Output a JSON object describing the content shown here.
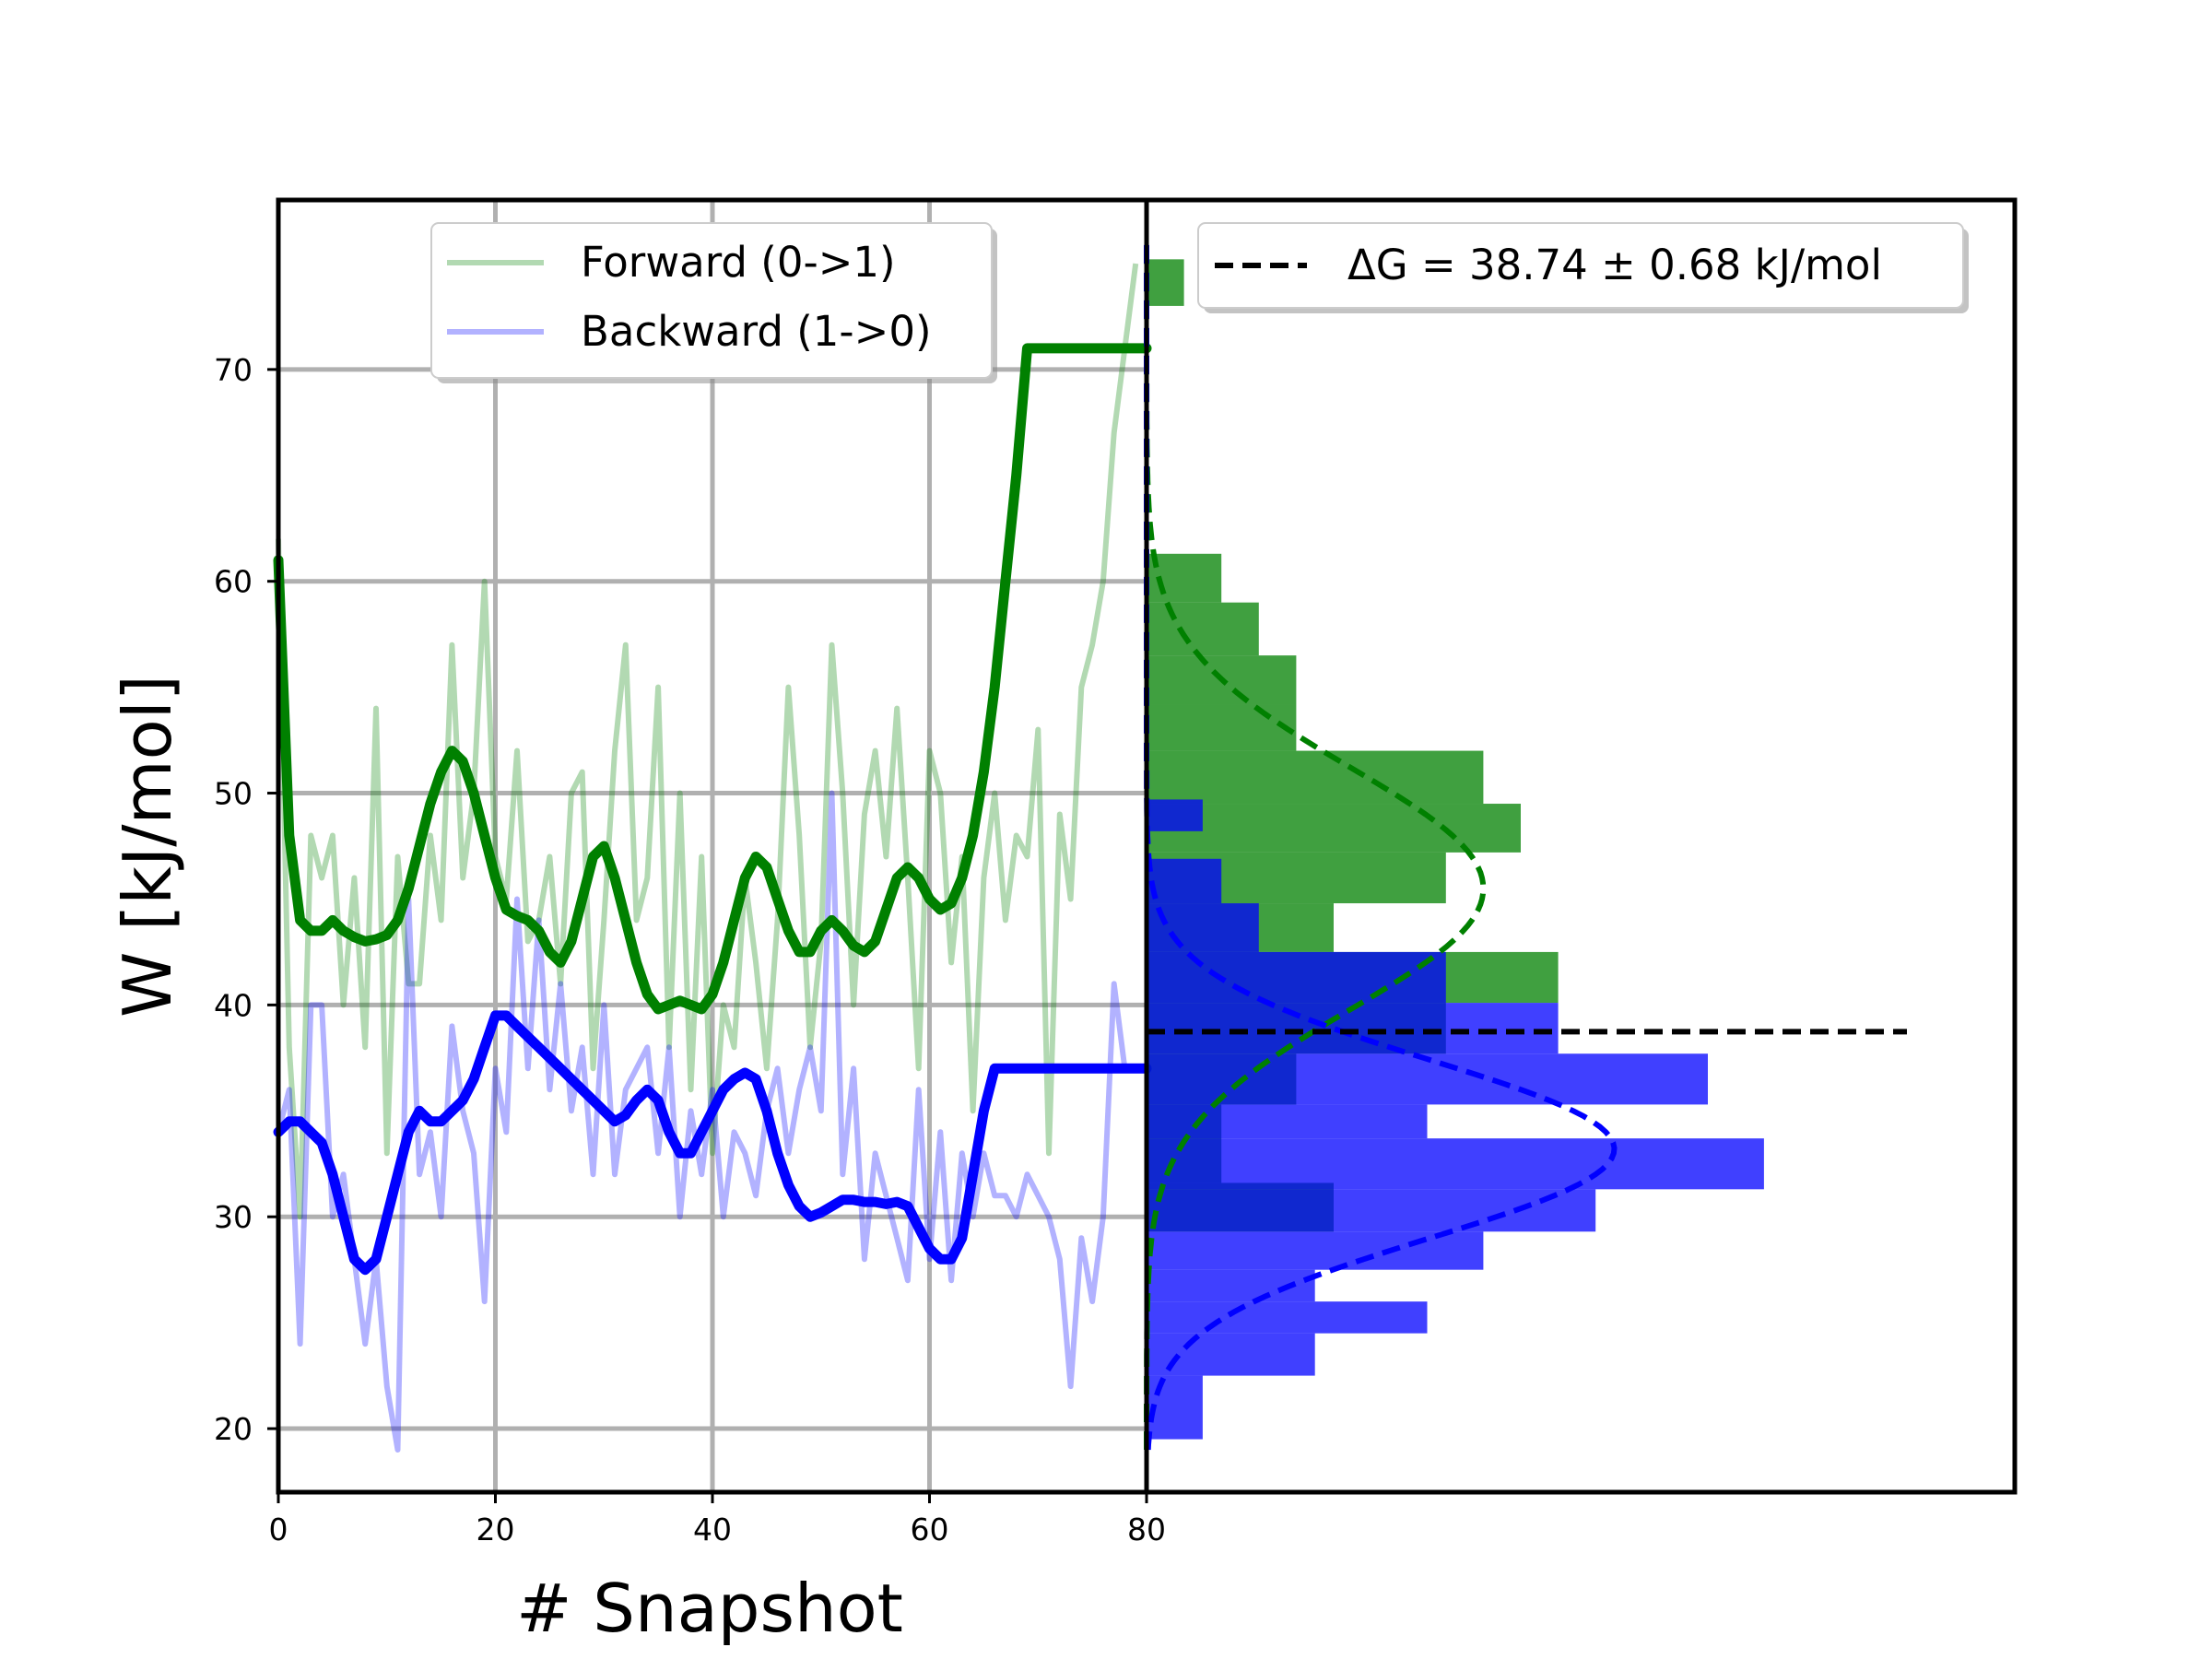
{
  "chart_data": [
    {
      "type": "line",
      "panel": "left",
      "xlabel": "# Snapshot",
      "ylabel": "W [kJ/mol]",
      "xlim": [
        0,
        80
      ],
      "ylim": [
        17,
        78
      ],
      "xticks": [
        0,
        20,
        40,
        60,
        80
      ],
      "yticks": [
        20,
        30,
        40,
        50,
        60,
        70
      ],
      "grid": true,
      "legend_position": "top-center",
      "legend": [
        "Forward (0->1)",
        "Backward (1->0)"
      ],
      "colors": {
        "forward": "#008000",
        "backward": "#0000ff"
      },
      "series": [
        {
          "name": "Forward (0->1)",
          "style": "raw-faint",
          "x": [
            0,
            1,
            2,
            3,
            4,
            5,
            6,
            7,
            8,
            9,
            10,
            11,
            12,
            13,
            14,
            15,
            16,
            17,
            18,
            19,
            20,
            21,
            22,
            23,
            24,
            25,
            26,
            27,
            28,
            29,
            30,
            31,
            32,
            33,
            34,
            35,
            36,
            37,
            38,
            39,
            40,
            41,
            42,
            43,
            44,
            45,
            46,
            47,
            48,
            49,
            50,
            51,
            52,
            53,
            54,
            55,
            56,
            57,
            58,
            59,
            60,
            61,
            62,
            63,
            64,
            65,
            66,
            67,
            68,
            69,
            70,
            71,
            72,
            73,
            74,
            75,
            76,
            77,
            78,
            79
          ],
          "y": [
            62,
            38,
            30,
            48,
            46,
            48,
            40,
            46,
            38,
            54,
            33,
            47,
            41,
            41,
            48,
            44,
            57,
            46,
            50,
            60,
            47,
            45,
            52,
            43,
            44,
            47,
            41,
            50,
            51,
            37,
            44,
            52,
            57,
            44,
            46,
            55,
            38,
            50,
            36,
            47,
            33,
            40,
            38,
            46,
            42,
            37,
            44,
            55,
            48,
            38,
            43,
            57,
            50,
            40,
            49,
            52,
            47,
            54,
            46,
            37,
            52,
            50,
            42,
            47,
            35,
            46,
            50,
            44,
            48,
            47,
            53,
            33,
            49,
            45,
            55,
            57,
            60,
            67,
            71,
            75
          ],
          "smoothed": [
            61,
            48,
            44,
            43.5,
            43.5,
            44,
            43.5,
            43.2,
            43,
            43.1,
            43.3,
            44,
            45.5,
            47.5,
            49.5,
            51,
            52,
            51.5,
            50,
            48,
            46,
            44.5,
            44.2,
            44,
            43.5,
            42.5,
            42,
            43,
            45,
            47,
            47.5,
            46,
            44,
            42,
            40.5,
            39.8,
            40,
            40.2,
            40,
            39.8,
            40.5,
            42,
            44,
            46,
            47,
            46.5,
            45,
            43.5,
            42.5,
            42.5,
            43.5,
            44,
            43.5,
            42.8,
            42.5,
            43,
            44.5,
            46,
            46.5,
            46,
            45,
            44.5,
            44.8,
            46,
            48,
            51,
            55,
            60,
            65,
            71,
            71,
            71,
            71,
            71,
            71,
            71,
            71,
            71,
            71,
            71
          ]
        },
        {
          "name": "Backward (1->0)",
          "style": "raw-faint",
          "x": [
            0,
            1,
            2,
            3,
            4,
            5,
            6,
            7,
            8,
            9,
            10,
            11,
            12,
            13,
            14,
            15,
            16,
            17,
            18,
            19,
            20,
            21,
            22,
            23,
            24,
            25,
            26,
            27,
            28,
            29,
            30,
            31,
            32,
            33,
            34,
            35,
            36,
            37,
            38,
            39,
            40,
            41,
            42,
            43,
            44,
            45,
            46,
            47,
            48,
            49,
            50,
            51,
            52,
            53,
            54,
            55,
            56,
            57,
            58,
            59,
            60,
            61,
            62,
            63,
            64,
            65,
            66,
            67,
            68,
            69,
            70,
            71,
            72,
            73,
            74,
            75,
            76,
            77,
            78,
            79
          ],
          "y": [
            34,
            36,
            24,
            40,
            40,
            30,
            32,
            28,
            24,
            28,
            22,
            19,
            45,
            32,
            34,
            30,
            39,
            35,
            33,
            26,
            37,
            34,
            45,
            37,
            44,
            36,
            41,
            35,
            38,
            32,
            40,
            32,
            36,
            37,
            38,
            33,
            38,
            30,
            35,
            32,
            36,
            30,
            34,
            33,
            31,
            35,
            37,
            33,
            36,
            38,
            35,
            50,
            32,
            37,
            28,
            33,
            31,
            29,
            27,
            36,
            28,
            34,
            27,
            33,
            30,
            33,
            31,
            31,
            30,
            32,
            31,
            30,
            28,
            22,
            29,
            26,
            30,
            41,
            37,
            37
          ],
          "smoothed": [
            34,
            34.5,
            34.5,
            34,
            33.5,
            32,
            30,
            28,
            27.5,
            28,
            30,
            32,
            34,
            35,
            34.5,
            34.5,
            35,
            35.5,
            36.5,
            38,
            39.5,
            39.5,
            39,
            38.5,
            38,
            37.5,
            37,
            36.5,
            36,
            35.5,
            35,
            34.5,
            34.8,
            35.5,
            36,
            35.5,
            34,
            33,
            33,
            34,
            35,
            36,
            36.5,
            36.8,
            36.5,
            35,
            33,
            31.5,
            30.5,
            30,
            30.2,
            30.5,
            30.8,
            30.8,
            30.7,
            30.7,
            30.6,
            30.7,
            30.5,
            29.5,
            28.5,
            28,
            28,
            29,
            32,
            35,
            37,
            37,
            37,
            37,
            37,
            37,
            37,
            37,
            37,
            37,
            37,
            37,
            37,
            37
          ]
        }
      ]
    },
    {
      "type": "histogram",
      "panel": "right",
      "orientation": "horizontal",
      "ylim": [
        17,
        78
      ],
      "xticks": [],
      "legend_position": "top-center",
      "legend": [
        "ΔG = 38.74 ± 0.68 kJ/mol"
      ],
      "dG": 38.74,
      "dG_err": 0.68,
      "series": [
        {
          "name": "Forward (0->1)",
          "color": "#008000",
          "bins": [
            {
              "y0": 73,
              "y1": 75.2,
              "count": 1
            },
            {
              "y0": 59,
              "y1": 61.3,
              "count": 2
            },
            {
              "y0": 56.5,
              "y1": 59,
              "count": 3
            },
            {
              "y0": 54.2,
              "y1": 56.5,
              "count": 4
            },
            {
              "y0": 52,
              "y1": 54.2,
              "count": 4
            },
            {
              "y0": 49.5,
              "y1": 52,
              "count": 9
            },
            {
              "y0": 47.2,
              "y1": 49.5,
              "count": 10
            },
            {
              "y0": 44.8,
              "y1": 47.2,
              "count": 8
            },
            {
              "y0": 42.5,
              "y1": 44.8,
              "count": 5
            },
            {
              "y0": 40.1,
              "y1": 42.5,
              "count": 11
            },
            {
              "y0": 37.7,
              "y1": 40.1,
              "count": 8
            },
            {
              "y0": 35.3,
              "y1": 37.7,
              "count": 4
            },
            {
              "y0": 31.6,
              "y1": 35.3,
              "count": 2
            },
            {
              "y0": 29.3,
              "y1": 31.6,
              "count": 5
            }
          ],
          "fit": {
            "mean": 45.5,
            "sigma": 5.7,
            "peak_count": 9
          }
        },
        {
          "name": "Backward (1->0)",
          "color": "#0000ff",
          "bins": [
            {
              "y0": 48.2,
              "y1": 49.7,
              "count": 1.5
            },
            {
              "y0": 44.8,
              "y1": 46.9,
              "count": 2
            },
            {
              "y0": 42.5,
              "y1": 44.8,
              "count": 3
            },
            {
              "y0": 40.1,
              "y1": 42.5,
              "count": 8
            },
            {
              "y0": 37.7,
              "y1": 40.1,
              "count": 11
            },
            {
              "y0": 35.3,
              "y1": 37.7,
              "count": 15
            },
            {
              "y0": 33.7,
              "y1": 35.3,
              "count": 7.5
            },
            {
              "y0": 31.3,
              "y1": 33.7,
              "count": 16.5
            },
            {
              "y0": 29.3,
              "y1": 31.3,
              "count": 12
            },
            {
              "y0": 27.5,
              "y1": 29.3,
              "count": 9
            },
            {
              "y0": 26,
              "y1": 27.5,
              "count": 4.5
            },
            {
              "y0": 24.5,
              "y1": 26,
              "count": 7.5
            },
            {
              "y0": 22.5,
              "y1": 24.5,
              "count": 4.5
            },
            {
              "y0": 19.5,
              "y1": 22.5,
              "count": 1.5
            }
          ],
          "fit": {
            "mean": 33.2,
            "sigma": 4.2,
            "peak_count": 12.5
          }
        }
      ]
    }
  ]
}
